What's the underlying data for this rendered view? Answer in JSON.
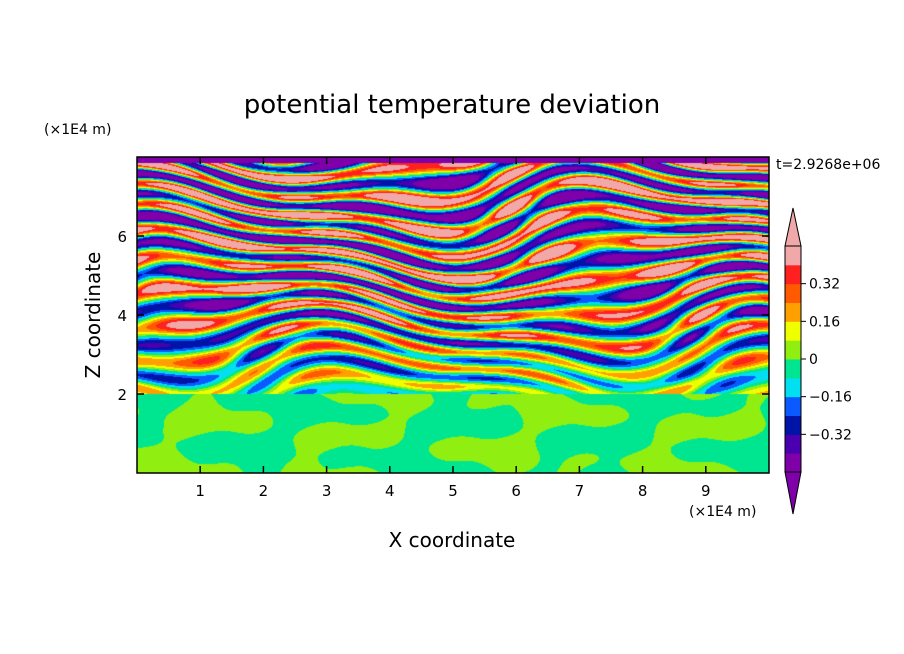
{
  "chart_data": {
    "type": "heatmap",
    "title": "potential temperature deviation",
    "xlabel": "X coordinate",
    "ylabel": "Z coordinate",
    "x_unit": "(×1E4 m)",
    "y_unit": "(×1E4 m)",
    "time_label": "t=2.9268e+06",
    "xlim": [
      0,
      10
    ],
    "ylim": [
      0,
      8
    ],
    "x_ticks": [
      1,
      2,
      3,
      4,
      5,
      6,
      7,
      8,
      9
    ],
    "y_ticks": [
      2,
      4,
      6
    ],
    "colorbar": {
      "levels": [
        -0.48,
        -0.4,
        -0.32,
        -0.24,
        -0.16,
        -0.08,
        0,
        0.08,
        0.16,
        0.24,
        0.32,
        0.4,
        0.48
      ],
      "tick_labels": [
        "0.32",
        "0.16",
        "0",
        "−0.16",
        "−0.32"
      ],
      "tick_values": [
        0.32,
        0.16,
        0,
        -0.16,
        -0.32
      ],
      "colors": [
        "#7f00a8",
        "#4a00b0",
        "#0014a8",
        "#0a5aff",
        "#00e0f0",
        "#00e690",
        "#90ee10",
        "#f0ff00",
        "#ffa000",
        "#ff5a00",
        "#ff2020",
        "#f0a8a8"
      ],
      "extend": "both"
    },
    "structure": {
      "quiet_layer_top": 2.0,
      "quiet_layer_colors": [
        "#00e690",
        "#90ee10"
      ],
      "banded_layer": [
        2.0,
        8.0
      ],
      "band_orientation": "horizontal"
    }
  }
}
